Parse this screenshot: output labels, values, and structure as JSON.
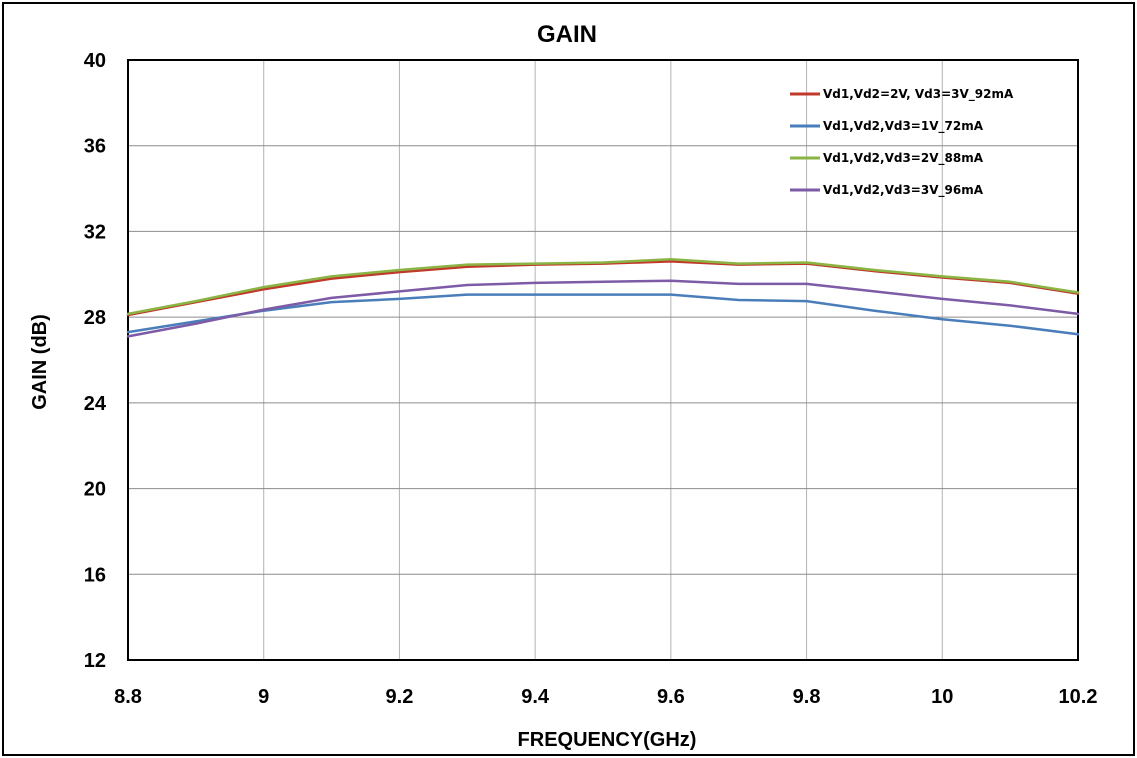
{
  "chart_data": {
    "type": "line",
    "title": "GAIN",
    "xlabel": "FREQUENCY(GHz)",
    "ylabel": "GAIN (dB)",
    "xlim": [
      8.8,
      10.2
    ],
    "ylim": [
      12,
      40
    ],
    "xticks": [
      8.8,
      9,
      9.2,
      9.4,
      9.6,
      9.8,
      10,
      10.2
    ],
    "xtick_labels": [
      "8.8",
      "9",
      "9.2",
      "9.4",
      "9.6",
      "9.8",
      "10",
      "10.2"
    ],
    "yticks": [
      12,
      16,
      20,
      24,
      28,
      32,
      36,
      40
    ],
    "ytick_labels": [
      "12",
      "16",
      "20",
      "24",
      "28",
      "32",
      "36",
      "40"
    ],
    "grid": true,
    "legend_position": "top-right",
    "x": [
      8.8,
      8.9,
      9.0,
      9.1,
      9.2,
      9.3,
      9.4,
      9.5,
      9.6,
      9.7,
      9.8,
      9.9,
      10.0,
      10.1,
      10.2
    ],
    "series": [
      {
        "name": "Vd1,Vd2=2V, Vd3=3V_92mA",
        "color": "#c0392b",
        "values": [
          28.1,
          28.7,
          29.3,
          29.8,
          30.1,
          30.35,
          30.45,
          30.5,
          30.6,
          30.45,
          30.5,
          30.15,
          29.85,
          29.6,
          29.1
        ]
      },
      {
        "name": "Vd1,Vd2,Vd3=1V_72mA",
        "color": "#4a7ebb",
        "values": [
          27.3,
          27.8,
          28.3,
          28.7,
          28.85,
          29.05,
          29.05,
          29.05,
          29.05,
          28.8,
          28.75,
          28.3,
          27.9,
          27.6,
          27.2
        ]
      },
      {
        "name": "Vd1,Vd2,Vd3=2V_88mA",
        "color": "#8ab545",
        "values": [
          28.15,
          28.75,
          29.4,
          29.9,
          30.2,
          30.45,
          30.5,
          30.55,
          30.7,
          30.5,
          30.55,
          30.2,
          29.9,
          29.65,
          29.15
        ]
      },
      {
        "name": "Vd1,Vd2,Vd3=3V_96mA",
        "color": "#7d5ba6",
        "values": [
          27.1,
          27.7,
          28.35,
          28.9,
          29.2,
          29.5,
          29.6,
          29.65,
          29.7,
          29.55,
          29.55,
          29.2,
          28.85,
          28.55,
          28.15
        ]
      }
    ]
  }
}
